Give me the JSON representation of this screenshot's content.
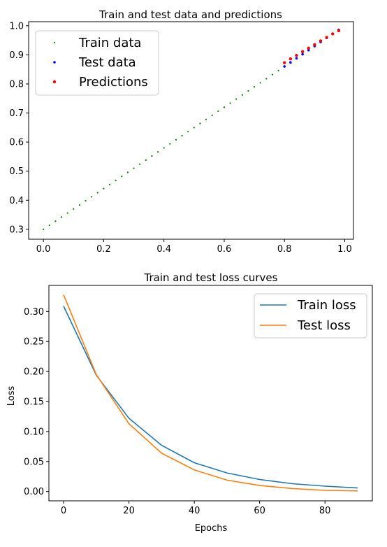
{
  "chart_data": [
    {
      "type": "scatter",
      "title": "Train and test data and predictions",
      "xlabel": "",
      "ylabel": "",
      "xlim": [
        -0.049,
        1.029
      ],
      "ylim": [
        0.266,
        1.014
      ],
      "x_ticks": [
        0.0,
        0.2,
        0.4,
        0.6,
        0.8,
        1.0
      ],
      "y_ticks": [
        0.3,
        0.4,
        0.5,
        0.6,
        0.7,
        0.8,
        0.9,
        1.0
      ],
      "x_tick_labels": [
        "0.0",
        "0.2",
        "0.4",
        "0.6",
        "0.8",
        "1.0"
      ],
      "y_tick_labels": [
        "0.3",
        "0.4",
        "0.5",
        "0.6",
        "0.7",
        "0.8",
        "0.9",
        "1.0"
      ],
      "grid": false,
      "legend": {
        "placement": "upper-left"
      },
      "series": [
        {
          "name": "Train data",
          "color": "#008000",
          "x": [
            0.0,
            0.02,
            0.04,
            0.06,
            0.08,
            0.1,
            0.12,
            0.14,
            0.16,
            0.18,
            0.2,
            0.22,
            0.24,
            0.26,
            0.28,
            0.3,
            0.32,
            0.34,
            0.36,
            0.38,
            0.4,
            0.42,
            0.44,
            0.46,
            0.48,
            0.5,
            0.52,
            0.54,
            0.56,
            0.58,
            0.6,
            0.62,
            0.64,
            0.66,
            0.68,
            0.7,
            0.72,
            0.74,
            0.76,
            0.78
          ],
          "y": [
            0.3,
            0.314,
            0.328,
            0.342,
            0.356,
            0.37,
            0.384,
            0.398,
            0.412,
            0.426,
            0.44,
            0.454,
            0.468,
            0.482,
            0.496,
            0.51,
            0.524,
            0.538,
            0.552,
            0.566,
            0.58,
            0.594,
            0.608,
            0.622,
            0.636,
            0.65,
            0.664,
            0.678,
            0.692,
            0.706,
            0.72,
            0.734,
            0.748,
            0.762,
            0.776,
            0.79,
            0.804,
            0.818,
            0.832,
            0.846
          ]
        },
        {
          "name": "Test data",
          "color": "#0000ff",
          "x": [
            0.8,
            0.82,
            0.84,
            0.86,
            0.88,
            0.9,
            0.92,
            0.94,
            0.96,
            0.98
          ],
          "y": [
            0.86,
            0.874,
            0.888,
            0.902,
            0.916,
            0.93,
            0.944,
            0.958,
            0.972,
            0.986
          ]
        },
        {
          "name": "Predictions",
          "color": "#ff0000",
          "x": [
            0.8,
            0.82,
            0.84,
            0.86,
            0.88,
            0.9,
            0.92,
            0.94,
            0.96,
            0.98
          ],
          "y": [
            0.873,
            0.886,
            0.898,
            0.911,
            0.923,
            0.935,
            0.948,
            0.96,
            0.972,
            0.983
          ]
        }
      ]
    },
    {
      "type": "line",
      "title": "Train and test loss curves",
      "xlabel": "Epochs",
      "ylabel": "Loss",
      "xlim": [
        -4.5,
        94.5
      ],
      "ylim": [
        -0.0155,
        0.3435
      ],
      "x_ticks": [
        0,
        20,
        40,
        60,
        80
      ],
      "y_ticks": [
        0.0,
        0.05,
        0.1,
        0.15,
        0.2,
        0.25,
        0.3
      ],
      "x_tick_labels": [
        "0",
        "20",
        "40",
        "60",
        "80"
      ],
      "y_tick_labels": [
        "0.00",
        "0.05",
        "0.10",
        "0.15",
        "0.20",
        "0.25",
        "0.30"
      ],
      "grid": false,
      "legend": {
        "placement": "upper-right"
      },
      "x": [
        0,
        10,
        20,
        30,
        40,
        50,
        60,
        70,
        80,
        90
      ],
      "series": [
        {
          "name": "Train loss",
          "color": "#1f77b4",
          "values": [
            0.309,
            0.194,
            0.122,
            0.077,
            0.048,
            0.031,
            0.02,
            0.013,
            0.009,
            0.006
          ]
        },
        {
          "name": "Test loss",
          "color": "#ff7f0e",
          "values": [
            0.328,
            0.195,
            0.113,
            0.064,
            0.036,
            0.019,
            0.01,
            0.005,
            0.002,
            0.001
          ]
        }
      ]
    }
  ]
}
